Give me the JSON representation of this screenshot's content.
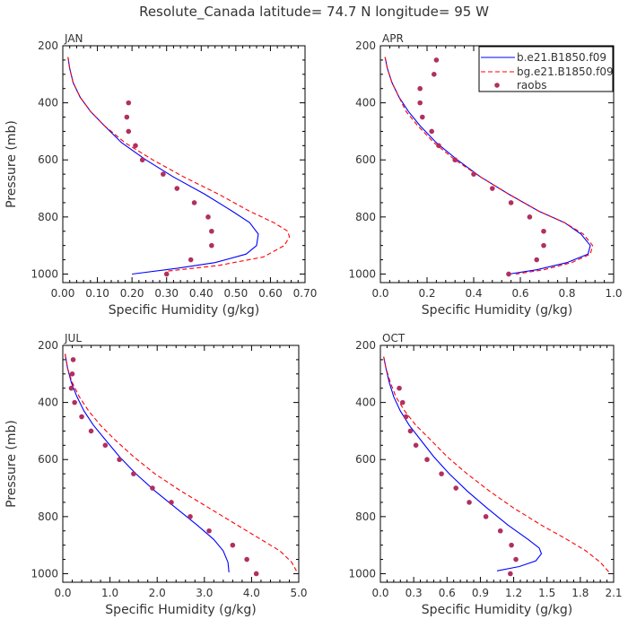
{
  "figure": {
    "title": "Resolute_Canada  latitude= 74.7 N longitude= 95 W"
  },
  "legend": {
    "entries": [
      {
        "label": "b.e21.B1850.f09",
        "style": "solid",
        "color": "#0000ff"
      },
      {
        "label": "bg.e21.B1850.f09",
        "style": "dashed",
        "color": "#ff0000"
      },
      {
        "label": "raobs",
        "style": "dot",
        "color": "#b03060"
      }
    ],
    "placement": "top-right of APR panel"
  },
  "chart_data": [
    {
      "type": "line",
      "panel": "JAN",
      "xlabel": "Specific Humidity (g/kg)",
      "ylabel": "Pressure (mb)",
      "xlim": [
        0,
        0.7
      ],
      "ylim": [
        1030,
        200
      ],
      "xticks": [
        "0.00",
        "0.10",
        "0.20",
        "0.30",
        "0.40",
        "0.50",
        "0.60",
        "0.70"
      ],
      "yticks": [
        "200",
        "400",
        "600",
        "800",
        "1000"
      ],
      "series": [
        {
          "name": "b.e21.B1850.f09",
          "x": [
            0.015,
            0.02,
            0.03,
            0.05,
            0.08,
            0.12,
            0.17,
            0.24,
            0.32,
            0.41,
            0.49,
            0.54,
            0.565,
            0.56,
            0.53,
            0.44,
            0.33,
            0.2
          ],
          "y": [
            240,
            280,
            330,
            380,
            430,
            480,
            540,
            600,
            660,
            720,
            780,
            820,
            860,
            900,
            930,
            960,
            980,
            1000
          ]
        },
        {
          "name": "bg.e21.B1850.f09",
          "x": [
            0.015,
            0.02,
            0.03,
            0.05,
            0.08,
            0.12,
            0.18,
            0.26,
            0.35,
            0.45,
            0.54,
            0.61,
            0.65,
            0.655,
            0.64,
            0.58,
            0.45,
            0.3
          ],
          "y": [
            240,
            280,
            330,
            380,
            430,
            480,
            540,
            600,
            660,
            720,
            780,
            820,
            850,
            870,
            900,
            940,
            970,
            990
          ]
        },
        {
          "name": "raobs",
          "x": [
            0.19,
            0.185,
            0.19,
            0.21,
            0.23,
            0.29,
            0.33,
            0.38,
            0.42,
            0.43,
            0.43,
            0.37,
            0.3
          ],
          "y": [
            400,
            450,
            500,
            550,
            600,
            650,
            700,
            750,
            800,
            850,
            900,
            950,
            1000
          ]
        }
      ]
    },
    {
      "type": "line",
      "panel": "APR",
      "xlabel": "Specific Humidity (g/kg)",
      "ylabel": "",
      "xlim": [
        0,
        1.0
      ],
      "ylim": [
        1030,
        200
      ],
      "xticks": [
        "0.0",
        "0.2",
        "0.4",
        "0.6",
        "0.8",
        "1.0"
      ],
      "yticks": [
        "200",
        "400",
        "600",
        "800",
        "1000"
      ],
      "series": [
        {
          "name": "b.e21.B1850.f09",
          "x": [
            0.02,
            0.03,
            0.05,
            0.08,
            0.12,
            0.17,
            0.24,
            0.33,
            0.43,
            0.55,
            0.68,
            0.79,
            0.86,
            0.9,
            0.89,
            0.8,
            0.67,
            0.55
          ],
          "y": [
            240,
            280,
            330,
            380,
            430,
            480,
            540,
            600,
            660,
            720,
            780,
            820,
            860,
            900,
            930,
            960,
            985,
            1000
          ]
        },
        {
          "name": "bg.e21.B1850.f09",
          "x": [
            0.02,
            0.03,
            0.05,
            0.08,
            0.11,
            0.16,
            0.23,
            0.32,
            0.43,
            0.55,
            0.68,
            0.79,
            0.87,
            0.91,
            0.9,
            0.82,
            0.7,
            0.58
          ],
          "y": [
            240,
            280,
            330,
            380,
            430,
            480,
            540,
            600,
            660,
            720,
            780,
            820,
            860,
            900,
            930,
            960,
            985,
            1000
          ]
        },
        {
          "name": "raobs",
          "x": [
            0.24,
            0.23,
            0.17,
            0.17,
            0.18,
            0.22,
            0.25,
            0.32,
            0.4,
            0.48,
            0.56,
            0.64,
            0.7,
            0.7,
            0.67,
            0.55
          ],
          "y": [
            250,
            300,
            350,
            400,
            450,
            500,
            550,
            600,
            650,
            700,
            750,
            800,
            850,
            900,
            950,
            1000
          ]
        }
      ]
    },
    {
      "type": "line",
      "panel": "JUL",
      "xlabel": "Specific Humidity (g/kg)",
      "ylabel": "Pressure (mb)",
      "xlim": [
        0,
        5.0
      ],
      "ylim": [
        1030,
        200
      ],
      "xticks": [
        "0.0",
        "1.0",
        "2.0",
        "3.0",
        "4.0",
        "5.0"
      ],
      "yticks": [
        "200",
        "400",
        "600",
        "800",
        "1000"
      ],
      "series": [
        {
          "name": "b.e21.B1850.f09",
          "x": [
            0.05,
            0.1,
            0.18,
            0.3,
            0.45,
            0.65,
            0.9,
            1.2,
            1.55,
            1.95,
            2.4,
            2.85,
            3.2,
            3.4,
            3.5,
            3.52
          ],
          "y": [
            230,
            280,
            330,
            380,
            430,
            480,
            530,
            590,
            650,
            710,
            770,
            830,
            880,
            920,
            960,
            995
          ]
        },
        {
          "name": "bg.e21.B1850.f09",
          "x": [
            0.05,
            0.1,
            0.2,
            0.35,
            0.55,
            0.8,
            1.1,
            1.5,
            1.95,
            2.5,
            3.1,
            3.7,
            4.2,
            4.6,
            4.85,
            4.95
          ],
          "y": [
            230,
            280,
            330,
            380,
            430,
            480,
            530,
            590,
            650,
            710,
            770,
            830,
            880,
            920,
            960,
            990
          ]
        },
        {
          "name": "raobs",
          "x": [
            0.22,
            0.2,
            0.18,
            0.25,
            0.4,
            0.6,
            0.9,
            1.2,
            1.5,
            1.9,
            2.3,
            2.7,
            3.1,
            3.6,
            3.9,
            4.1
          ],
          "y": [
            250,
            300,
            350,
            400,
            450,
            500,
            550,
            600,
            650,
            700,
            750,
            800,
            850,
            900,
            950,
            1000
          ]
        }
      ]
    },
    {
      "type": "line",
      "panel": "OCT",
      "xlabel": "Specific Humidity (g/kg)",
      "ylabel": "",
      "xlim": [
        0,
        2.1
      ],
      "ylim": [
        1030,
        200
      ],
      "xticks": [
        "0.0",
        "0.3",
        "0.6",
        "0.9",
        "1.2",
        "1.5",
        "1.8",
        "2.1"
      ],
      "yticks": [
        "200",
        "400",
        "600",
        "800",
        "1000"
      ],
      "series": [
        {
          "name": "b.e21.B1850.f09",
          "x": [
            0.03,
            0.05,
            0.08,
            0.12,
            0.18,
            0.26,
            0.36,
            0.48,
            0.62,
            0.78,
            0.96,
            1.15,
            1.33,
            1.43,
            1.45,
            1.4,
            1.25,
            1.05
          ],
          "y": [
            240,
            280,
            330,
            380,
            430,
            480,
            530,
            590,
            650,
            710,
            770,
            830,
            880,
            910,
            930,
            955,
            975,
            990
          ]
        },
        {
          "name": "bg.e21.B1850.f09",
          "x": [
            0.03,
            0.05,
            0.09,
            0.14,
            0.22,
            0.32,
            0.45,
            0.6,
            0.78,
            0.98,
            1.2,
            1.45,
            1.68,
            1.85,
            1.98,
            2.06
          ],
          "y": [
            240,
            280,
            330,
            380,
            430,
            480,
            530,
            590,
            650,
            710,
            770,
            830,
            880,
            920,
            960,
            995
          ]
        },
        {
          "name": "raobs",
          "x": [
            0.17,
            0.2,
            0.23,
            0.27,
            0.32,
            0.42,
            0.55,
            0.68,
            0.8,
            0.95,
            1.08,
            1.18,
            1.22,
            1.17
          ],
          "y": [
            350,
            400,
            450,
            500,
            550,
            600,
            650,
            700,
            750,
            800,
            850,
            900,
            950,
            1000
          ]
        }
      ]
    }
  ]
}
